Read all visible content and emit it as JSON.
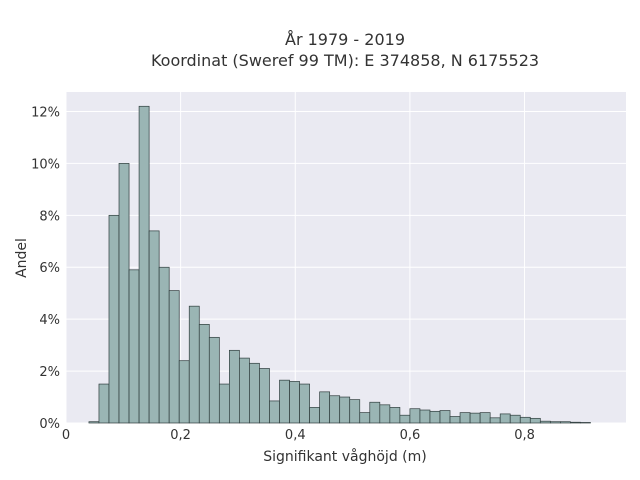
{
  "chart_data": {
    "type": "bar",
    "title": [
      "År 1979 - 2019",
      "Koordinat (Sweref 99 TM): E 374858, N 6175523"
    ],
    "xlabel": "Signifikant våghöjd (m)",
    "ylabel": "Andel",
    "xlim": [
      0,
      0.977
    ],
    "ylim": [
      0,
      12.75
    ],
    "xticks": [
      {
        "value": 0,
        "label": "0"
      },
      {
        "value": 0.2,
        "label": "0,2"
      },
      {
        "value": 0.4,
        "label": "0,4"
      },
      {
        "value": 0.6,
        "label": "0,6"
      },
      {
        "value": 0.8,
        "label": "0,8"
      }
    ],
    "yticks": [
      {
        "value": 0,
        "label": "0%"
      },
      {
        "value": 2,
        "label": "2%"
      },
      {
        "value": 4,
        "label": "4%"
      },
      {
        "value": 6,
        "label": "6%"
      },
      {
        "value": 8,
        "label": "8%"
      },
      {
        "value": 10,
        "label": "10%"
      },
      {
        "value": 12,
        "label": "12%"
      }
    ],
    "bin_start": 0.04,
    "bin_width": 0.0175,
    "values": [
      0.05,
      1.5,
      8.0,
      10.0,
      5.9,
      12.2,
      7.4,
      6.0,
      5.1,
      2.4,
      4.5,
      3.8,
      3.3,
      1.5,
      2.8,
      2.5,
      2.3,
      2.1,
      0.85,
      1.65,
      1.6,
      1.5,
      0.6,
      1.2,
      1.05,
      1.0,
      0.9,
      0.4,
      0.8,
      0.7,
      0.6,
      0.3,
      0.55,
      0.5,
      0.45,
      0.48,
      0.25,
      0.4,
      0.38,
      0.4,
      0.2,
      0.35,
      0.3,
      0.22,
      0.18,
      0.07,
      0.05,
      0.05,
      0.03,
      0.02
    ],
    "colors": {
      "bar_fill": "#9ab5b4",
      "bar_edge": "#2f3d3d",
      "plot_background": "#eaeaf2",
      "grid": "#ffffff"
    },
    "grid": true,
    "legend": "none"
  }
}
